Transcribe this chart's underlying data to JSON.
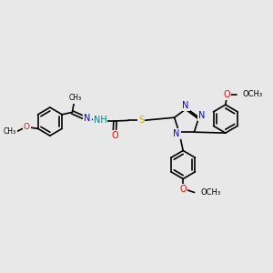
{
  "bg_color": "#e8e8e8",
  "bond_color": "#000000",
  "bond_width": 1.2,
  "fig_size": [
    3.0,
    3.0
  ],
  "dpi": 100,
  "colors": {
    "N": "#0000ff",
    "O": "#ff0000",
    "S": "#ccaa00",
    "H": "#008080",
    "C": "#000000"
  },
  "xlim": [
    0,
    10
  ],
  "ylim": [
    0,
    10
  ]
}
